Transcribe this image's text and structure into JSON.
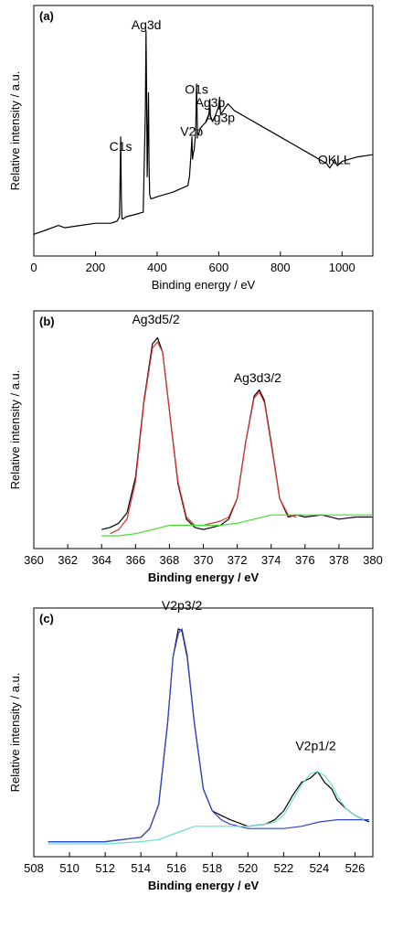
{
  "chart_data": [
    {
      "panel": "(a)",
      "type": "line",
      "xlabel": "Binding energy / eV",
      "ylabel": "Relative intensity / a.u.",
      "xlim": [
        0,
        1100
      ],
      "ylim": [
        0,
        100
      ],
      "xticks": [
        0,
        200,
        400,
        600,
        800,
        1000
      ],
      "annotations": [
        {
          "text": "Ag3d",
          "x": 365,
          "y": 95
        },
        {
          "text": "C1s",
          "x": 282,
          "y": 40
        },
        {
          "text": "V2p",
          "x": 512,
          "y": 47
        },
        {
          "text": "O1s",
          "x": 528,
          "y": 66
        },
        {
          "text": "Ag3p",
          "x": 572,
          "y": 60
        },
        {
          "text": "Ag3p",
          "x": 604,
          "y": 53
        },
        {
          "text": "OKLL",
          "x": 975,
          "y": 34
        }
      ],
      "series": [
        {
          "name": "",
          "color": "#000000",
          "x": [
            0,
            20,
            40,
            60,
            80,
            100,
            150,
            200,
            250,
            270,
            278,
            282,
            284,
            286,
            290,
            300,
            330,
            355,
            362,
            364,
            366,
            368,
            372,
            374,
            376,
            380,
            400,
            450,
            500,
            505,
            510,
            513,
            515,
            518,
            520,
            525,
            528,
            531,
            535,
            540,
            560,
            568,
            571,
            573,
            580,
            590,
            600,
            603,
            606,
            615,
            630,
            650,
            700,
            750,
            800,
            850,
            900,
            950,
            960,
            970,
            975,
            985,
            1000,
            1050,
            1100
          ],
          "y": [
            4,
            5,
            6,
            7,
            8,
            7,
            8,
            9,
            9,
            10,
            12,
            48,
            20,
            11,
            11,
            12,
            13,
            14,
            60,
            96,
            70,
            30,
            68,
            35,
            22,
            20,
            21,
            23,
            26,
            30,
            40,
            48,
            38,
            41,
            42,
            50,
            72,
            50,
            49,
            52,
            55,
            58,
            65,
            57,
            55,
            58,
            62,
            66,
            58,
            60,
            63,
            60,
            56,
            52,
            48,
            44,
            40,
            36,
            34,
            36,
            38,
            35,
            37,
            39,
            40
          ]
        }
      ]
    },
    {
      "panel": "(b)",
      "type": "line",
      "xlabel": "Binding energy / eV",
      "ylabel": "Relative intensity / a.u.",
      "xlim": [
        360,
        380
      ],
      "ylim": [
        0,
        100
      ],
      "xticks": [
        360,
        362,
        364,
        366,
        368,
        370,
        372,
        374,
        376,
        378,
        380
      ],
      "annotations": [
        {
          "text": "Ag3d5/2",
          "x": 367.2,
          "y": 100
        },
        {
          "text": "Ag3d3/2",
          "x": 373.2,
          "y": 72
        }
      ],
      "series": [
        {
          "name": "",
          "color": "#000000",
          "x": [
            364,
            364.5,
            365,
            365.5,
            366,
            366.5,
            367,
            367.3,
            367.6,
            368,
            368.5,
            369,
            369.5,
            370,
            370.5,
            371,
            371.5,
            372,
            372.5,
            373,
            373.3,
            373.6,
            374,
            374.5,
            375,
            375.5,
            376,
            377,
            378,
            379,
            380
          ],
          "y": [
            3,
            4,
            6,
            11,
            28,
            65,
            92,
            95,
            88,
            60,
            25,
            8,
            4,
            3,
            4,
            5,
            8,
            18,
            45,
            67,
            70,
            65,
            45,
            18,
            9,
            10,
            9,
            10,
            8,
            9,
            9
          ]
        },
        {
          "name": "",
          "color": "#e03030",
          "x": [
            364.5,
            365,
            365.5,
            366,
            366.5,
            367,
            367.3,
            367.6,
            368,
            368.5,
            369,
            369.5,
            370,
            371,
            371.5,
            372,
            372.5,
            373,
            373.3,
            373.6,
            374,
            374.5,
            375,
            375.5
          ],
          "y": [
            1,
            3,
            8,
            26,
            64,
            90,
            93,
            88,
            60,
            26,
            9,
            5,
            5,
            7,
            9,
            18,
            45,
            66,
            69,
            64,
            44,
            18,
            10,
            9
          ]
        },
        {
          "name": "",
          "color": "#44dd33",
          "x": [
            364,
            365,
            366,
            367,
            368,
            369,
            370,
            371,
            372,
            373,
            374,
            375,
            376,
            377,
            378,
            379,
            380
          ],
          "y": [
            0,
            0,
            1,
            3,
            5,
            5,
            5,
            5,
            6,
            8,
            10,
            10,
            10,
            10,
            10,
            10,
            10
          ]
        }
      ]
    },
    {
      "panel": "(c)",
      "type": "line",
      "xlabel": "Binding energy / eV",
      "ylabel": "Relative intensity / a.u.",
      "xlim": [
        508,
        527
      ],
      "ylim": [
        0,
        100
      ],
      "xticks": [
        508,
        510,
        512,
        514,
        516,
        518,
        520,
        522,
        524,
        526
      ],
      "annotations": [
        {
          "text": "V2p3/2",
          "x": 516.3,
          "y": 105
        },
        {
          "text": "V2p1/2",
          "x": 523.8,
          "y": 41
        }
      ],
      "series": [
        {
          "name": "",
          "color": "#000000",
          "x": [
            508.8,
            510,
            511,
            512,
            513,
            514,
            514.5,
            515,
            515.5,
            515.8,
            516.1,
            516.3,
            516.6,
            517,
            517.5,
            518,
            518.5,
            519,
            520,
            521,
            521.5,
            522,
            522.5,
            523,
            523.5,
            523.9,
            524.3,
            524.7,
            525,
            525.5,
            526,
            526.5,
            526.8
          ],
          "y": [
            1,
            1,
            1,
            1,
            2,
            3,
            7,
            18,
            55,
            85,
            98,
            97,
            85,
            55,
            25,
            15,
            13,
            11,
            8,
            9,
            11,
            15,
            22,
            28,
            30,
            33,
            28,
            25,
            20,
            16,
            13,
            11,
            10
          ]
        },
        {
          "name": "",
          "color": "#3344cc",
          "x": [
            508.8,
            510,
            512,
            513,
            514,
            514.5,
            515,
            515.5,
            515.8,
            516.1,
            516.3,
            516.6,
            517,
            517.5,
            518,
            518.5,
            519,
            520,
            521,
            522,
            523,
            524,
            525,
            526,
            526.8
          ],
          "y": [
            1,
            1,
            1,
            2,
            3,
            7,
            18,
            55,
            85,
            96,
            98,
            86,
            55,
            25,
            15,
            11,
            9,
            7,
            7,
            7,
            8,
            10,
            11,
            11,
            11
          ]
        },
        {
          "name": "",
          "color": "#66e0cc",
          "x": [
            508.8,
            512,
            514,
            515,
            516,
            517,
            518,
            519,
            520,
            521,
            521.5,
            522,
            522.5,
            523,
            523.5,
            523.9,
            524.3,
            524.7,
            525,
            525.5,
            526,
            526.5
          ],
          "y": [
            0,
            0,
            1,
            2,
            5,
            8,
            8,
            8,
            8,
            9,
            10,
            13,
            20,
            27,
            32,
            33,
            31,
            27,
            22,
            16,
            13,
            11
          ]
        }
      ]
    }
  ]
}
